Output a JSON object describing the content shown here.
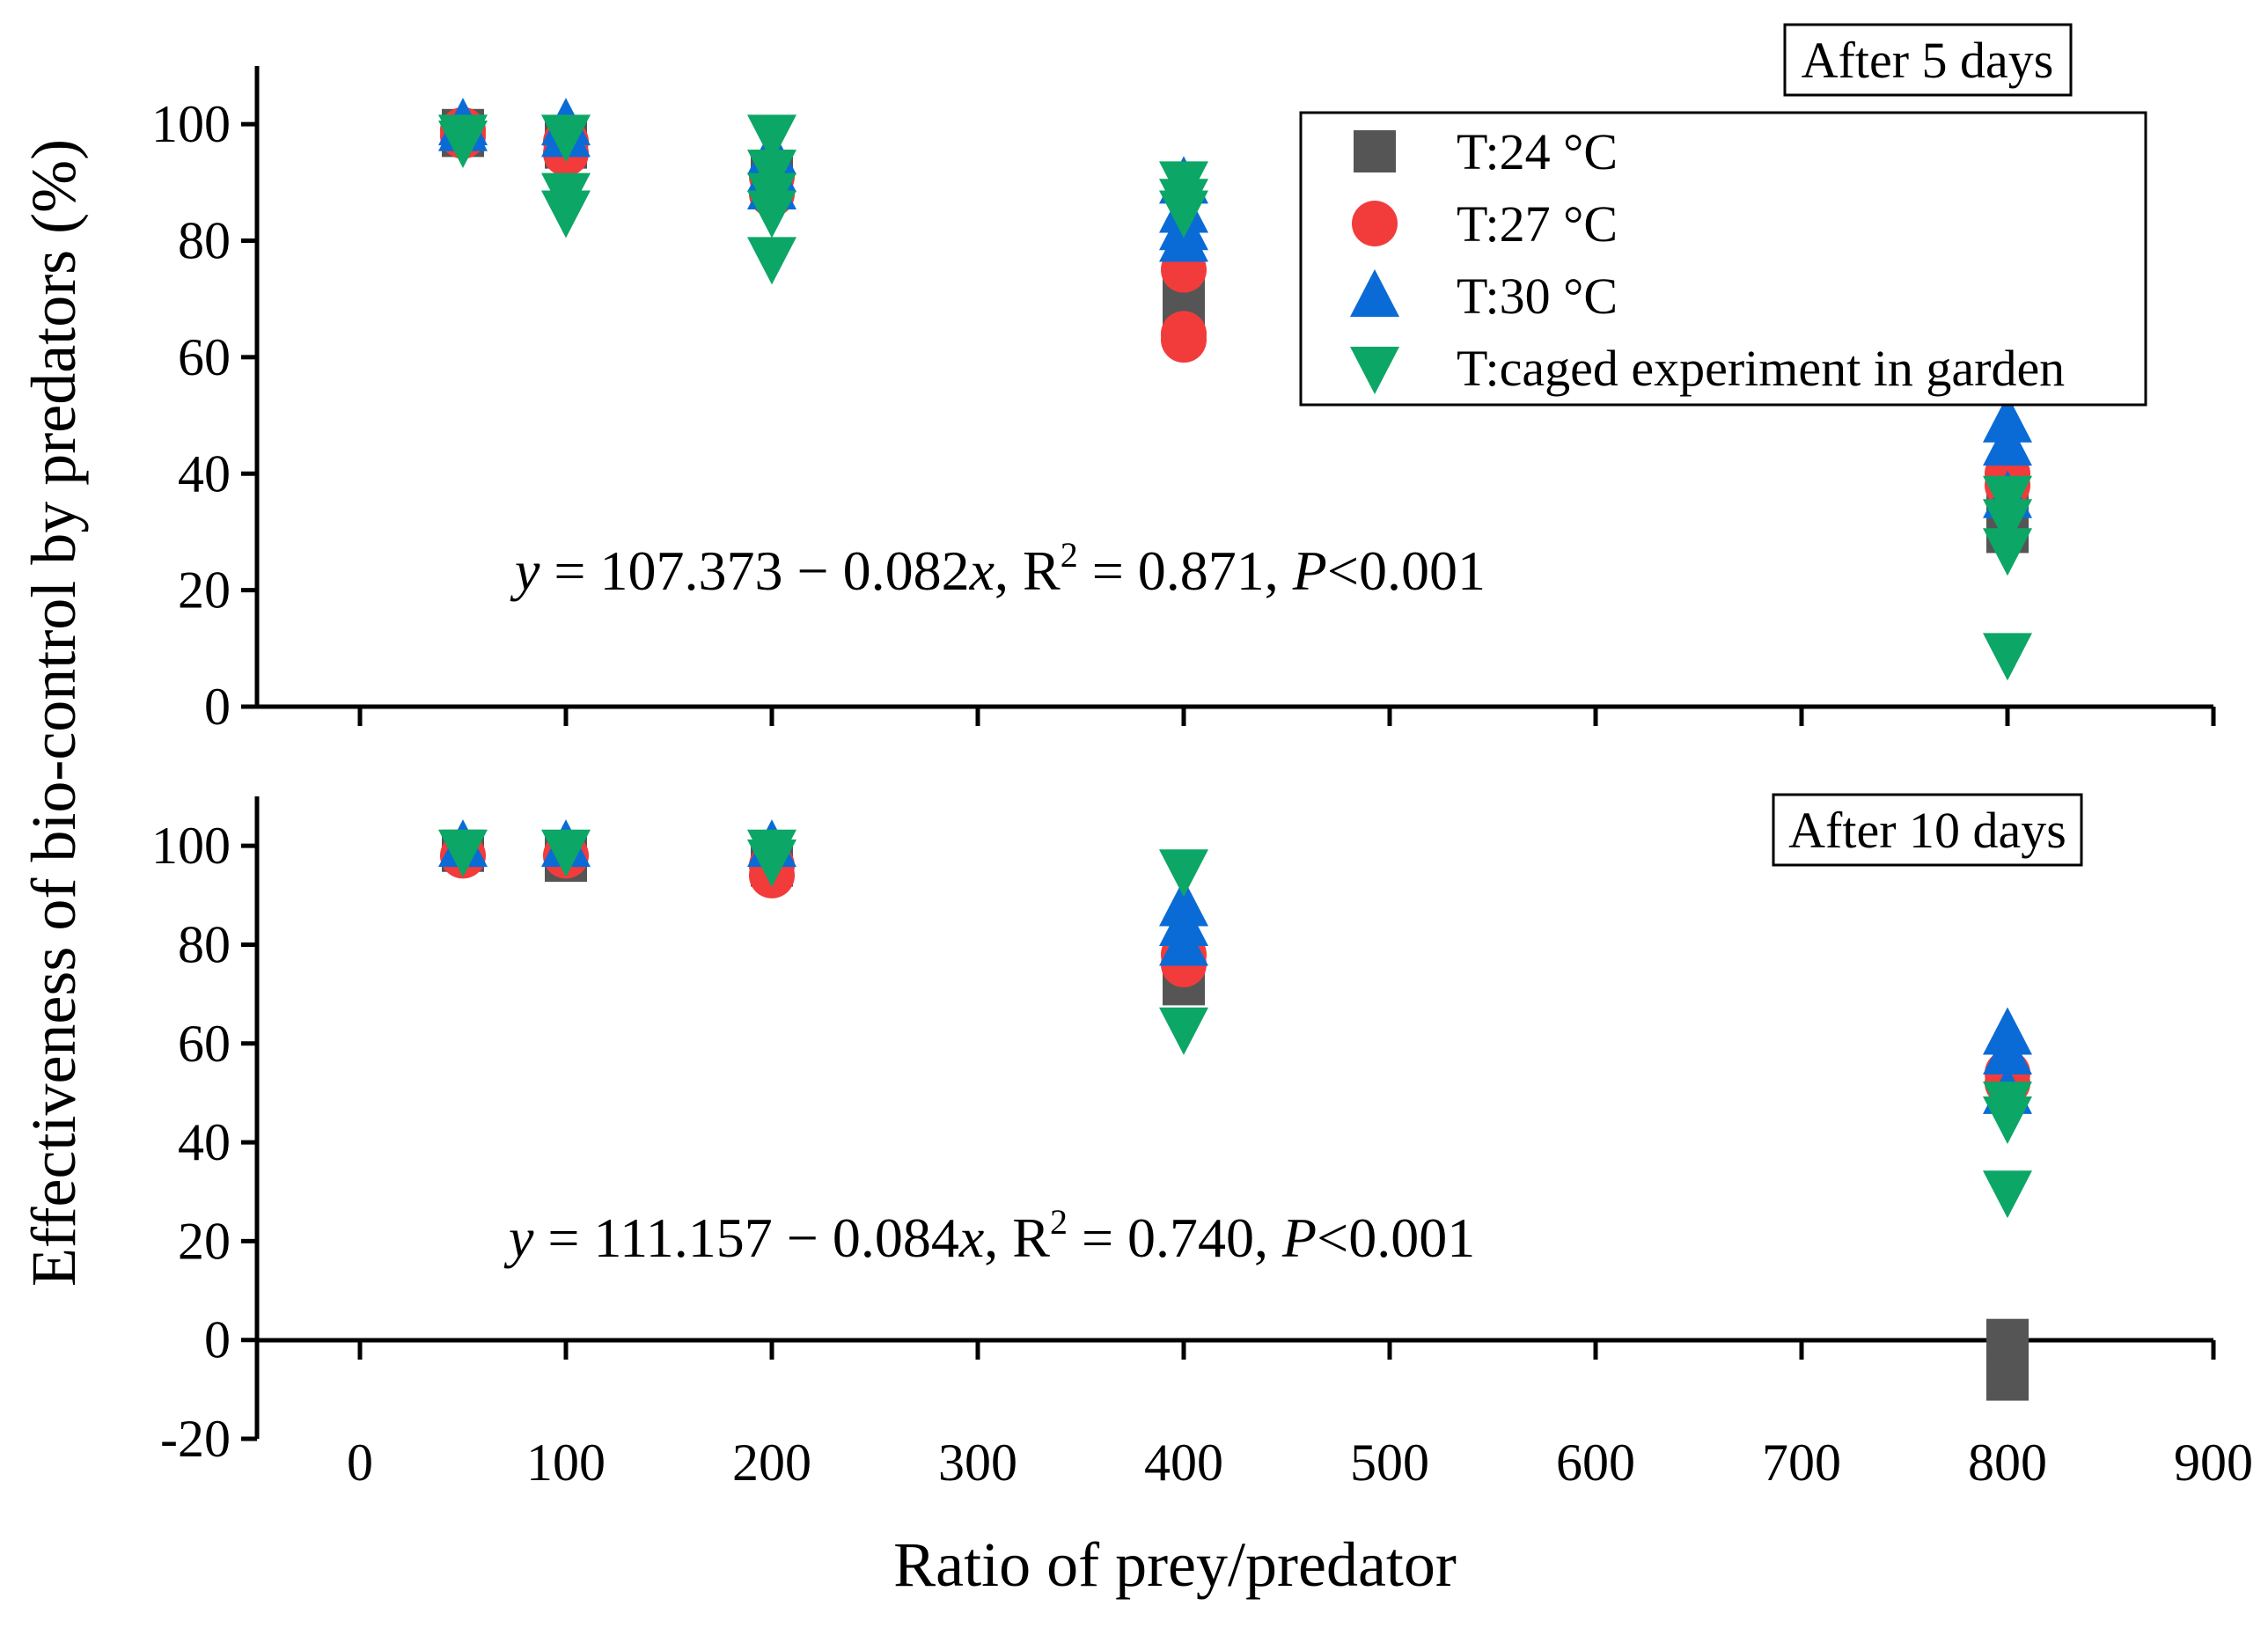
{
  "chart_data": {
    "type": "scatter",
    "xlabel": "Ratio of prey/predator",
    "ylabel": "Effectiveness of bio-control by predators (%)",
    "xlim": [
      -50,
      900
    ],
    "xticks": [
      0,
      100,
      200,
      300,
      400,
      500,
      600,
      700,
      800,
      900
    ],
    "legend": {
      "position": "top-right",
      "entries": [
        "T:24 °C",
        "T:27 °C",
        "T:30 °C",
        "T:caged experiment in garden"
      ]
    },
    "series_meta": [
      {
        "name": "T:24 °C",
        "color": "#555555",
        "marker": "square"
      },
      {
        "name": "T:27 °C",
        "color": "#f23b3b",
        "marker": "circle"
      },
      {
        "name": "T:30 °C",
        "color": "#0a6bd6",
        "marker": "triangle-up"
      },
      {
        "name": "T:caged experiment in garden",
        "color": "#0ca666",
        "marker": "triangle-down"
      }
    ],
    "panels": [
      {
        "label": "After 5 days",
        "ylim": [
          0,
          110
        ],
        "yticks": [
          0,
          20,
          40,
          60,
          80,
          100
        ],
        "equation": {
          "y": "y",
          "rhs": " = 107.373 − 0.082",
          "x": "x",
          "r": ", R",
          "sup": "2",
          "r2": " = 0.871, ",
          "p": "P",
          "tail": "<0.001"
        },
        "series": [
          {
            "name": "T:24 °C",
            "x": [
              50,
              50,
              100,
              100,
              200,
              200,
              400,
              400,
              800,
              800
            ],
            "y": [
              98,
              99,
              97,
              96,
              90,
              92,
              70,
              68,
              30,
              33
            ]
          },
          {
            "name": "T:27 °C",
            "x": [
              50,
              50,
              100,
              100,
              200,
              200,
              400,
              400,
              400,
              800,
              800
            ],
            "y": [
              98,
              99,
              95,
              97,
              88,
              91,
              75,
              63,
              64,
              40,
              38
            ]
          },
          {
            "name": "T:30 °C",
            "x": [
              50,
              50,
              100,
              100,
              200,
              200,
              200,
              400,
              400,
              400,
              400,
              800,
              800,
              800
            ],
            "y": [
              100,
              99,
              100,
              98,
              95,
              92,
              89,
              90,
              85,
              82,
              80,
              49,
              45,
              36
            ]
          },
          {
            "name": "T:caged experiment in garden",
            "x": [
              50,
              50,
              100,
              100,
              100,
              200,
              200,
              200,
              200,
              200,
              400,
              400,
              400,
              800,
              800,
              800,
              800
            ],
            "y": [
              98,
              97,
              88,
              85,
              98,
              98,
              92,
              88,
              85,
              77,
              90,
              87,
              85,
              36,
              32,
              27,
              9
            ]
          }
        ]
      },
      {
        "label": "After 10 days",
        "ylim": [
          -20,
          110
        ],
        "yticks": [
          -20,
          0,
          20,
          40,
          60,
          80,
          100
        ],
        "equation": {
          "y": "y",
          "rhs": " = 111.157 − 0.084",
          "x": "x",
          "r": ", R",
          "sup": "2",
          "r2": " = 0.740, ",
          "p": "P",
          "tail": "<0.001"
        },
        "series": [
          {
            "name": "T:24 °C",
            "x": [
              50,
              100,
              100,
              200,
              200,
              400,
              400,
              800,
              800
            ],
            "y": [
              99,
              97,
              98,
              96,
              97,
              72,
              74,
              0,
              -8
            ]
          },
          {
            "name": "T:27 °C",
            "x": [
              50,
              100,
              200,
              200,
              400,
              400,
              800,
              800
            ],
            "y": [
              98,
              98,
              94,
              96,
              76,
              78,
              54,
              52
            ]
          },
          {
            "name": "T:30 °C",
            "x": [
              50,
              100,
              200,
              400,
              400,
              400,
              800,
              800,
              800
            ],
            "y": [
              100,
              100,
              100,
              88,
              84,
              80,
              62,
              58,
              50
            ]
          },
          {
            "name": "T:caged experiment in garden",
            "x": [
              50,
              100,
              200,
              200,
              400,
              400,
              800,
              800,
              800
            ],
            "y": [
              99,
              99,
              99,
              97,
              95,
              63,
              48,
              45,
              30
            ]
          }
        ]
      }
    ]
  }
}
